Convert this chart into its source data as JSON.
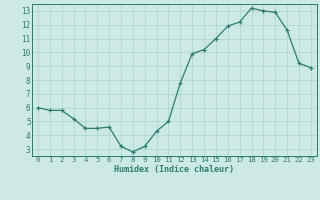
{
  "x": [
    0,
    1,
    2,
    3,
    4,
    5,
    6,
    7,
    8,
    9,
    10,
    11,
    12,
    13,
    14,
    15,
    16,
    17,
    18,
    19,
    20,
    21,
    22,
    23
  ],
  "y": [
    6.0,
    5.8,
    5.8,
    5.2,
    4.5,
    4.5,
    4.6,
    3.2,
    2.8,
    3.2,
    4.3,
    5.0,
    7.8,
    9.9,
    10.2,
    11.0,
    11.9,
    12.2,
    13.2,
    13.0,
    12.9,
    11.6,
    9.2,
    8.9
  ],
  "xlim": [
    -0.5,
    23.5
  ],
  "ylim": [
    2.5,
    13.5
  ],
  "yticks": [
    3,
    4,
    5,
    6,
    7,
    8,
    9,
    10,
    11,
    12,
    13
  ],
  "xticks": [
    0,
    1,
    2,
    3,
    4,
    5,
    6,
    7,
    8,
    9,
    10,
    11,
    12,
    13,
    14,
    15,
    16,
    17,
    18,
    19,
    20,
    21,
    22,
    23
  ],
  "xlabel": "Humidex (Indice chaleur)",
  "line_color": "#2e7d6e",
  "marker_color": "#2e7d6e",
  "bg_color": "#cce9e6",
  "grid_color": "#aad4cf",
  "tick_color": "#2e7d6e",
  "label_color": "#2e7d6e",
  "spine_color": "#2e7d6e"
}
